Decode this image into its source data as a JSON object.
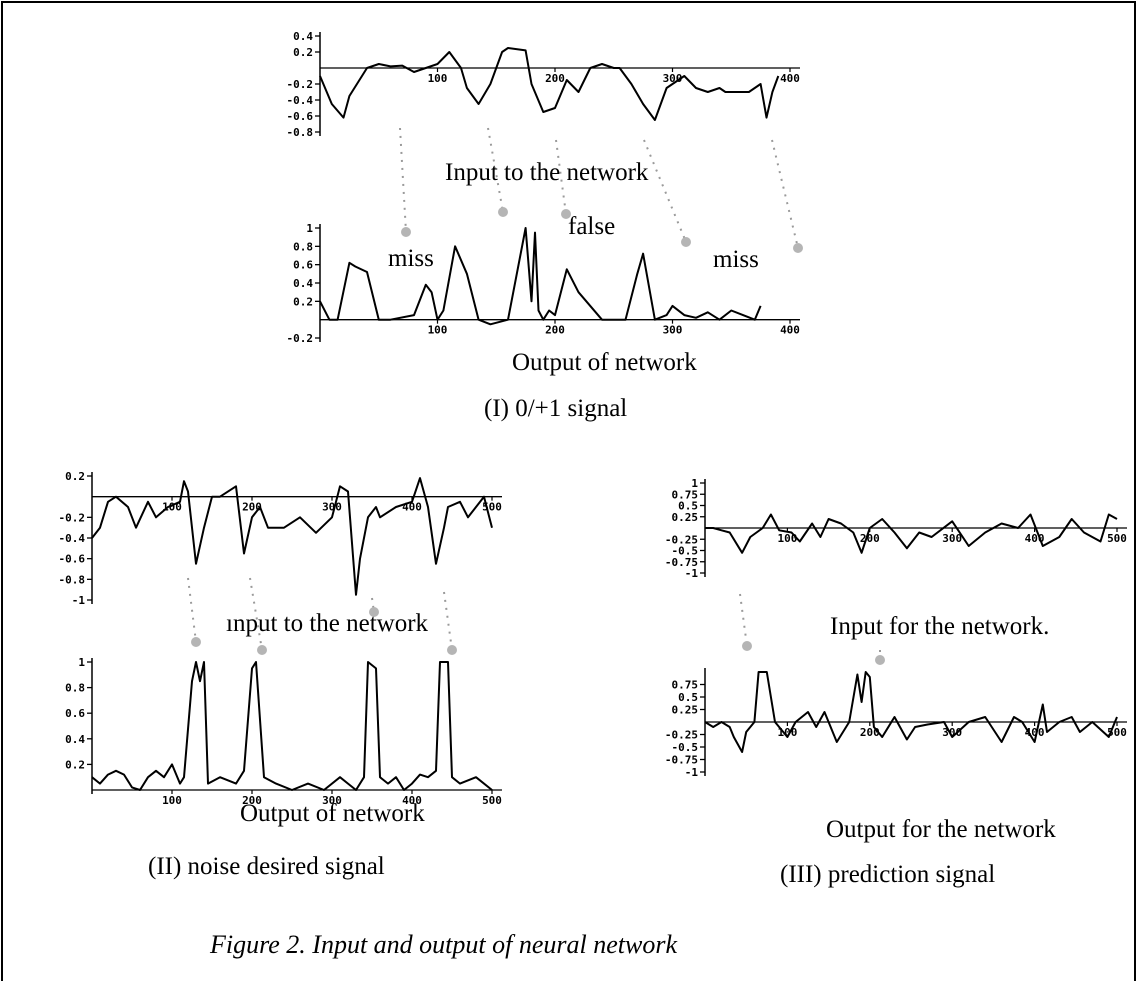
{
  "caption": "Figure 2.   Input and output of neural network",
  "labels": {
    "p1_input": "Input to the network",
    "p1_output": "Output of network",
    "p1_title": "(I) 0/+1 signal",
    "p1_false": "false",
    "p1_miss1": "miss",
    "p1_miss2": "miss",
    "p2_input": "ınput to the network",
    "p2_output": "Output of network",
    "p2_title": "(II) noise desired signal",
    "p3_input": "Input for the network.",
    "p3_output": "Output for the network",
    "p3_title": "(III) prediction signal"
  },
  "chart_data": [
    {
      "id": "p1_in",
      "type": "line",
      "xlim": [
        0,
        400
      ],
      "ylim": [
        -0.8,
        0.4
      ],
      "yticks": [
        "0.4",
        "0.2",
        "-0.2",
        "-0.4",
        "-0.6",
        "-0.8"
      ],
      "xticks": [
        "100",
        "200",
        "300",
        "400"
      ],
      "x": [
        0,
        10,
        20,
        25,
        40,
        50,
        60,
        70,
        80,
        90,
        100,
        110,
        120,
        125,
        135,
        145,
        155,
        160,
        175,
        180,
        190,
        200,
        210,
        220,
        230,
        240,
        250,
        255,
        265,
        275,
        285,
        295,
        310,
        320,
        330,
        340,
        345,
        355,
        365,
        375,
        380,
        385,
        390
      ],
      "y": [
        -0.1,
        -0.45,
        -0.62,
        -0.35,
        0.0,
        0.05,
        0.02,
        0.03,
        -0.05,
        0.0,
        0.05,
        0.2,
        0.0,
        -0.25,
        -0.45,
        -0.2,
        0.2,
        0.25,
        0.22,
        -0.2,
        -0.55,
        -0.5,
        -0.15,
        -0.3,
        0.0,
        0.05,
        0.0,
        0.0,
        -0.2,
        -0.45,
        -0.65,
        -0.25,
        -0.1,
        -0.25,
        -0.3,
        -0.25,
        -0.3,
        -0.3,
        -0.3,
        -0.2,
        -0.62,
        -0.3,
        -0.1
      ]
    },
    {
      "id": "p1_out",
      "type": "line",
      "xlim": [
        0,
        400
      ],
      "ylim": [
        -0.2,
        1.0
      ],
      "yticks": [
        "1",
        "0.8",
        "0.6",
        "0.4",
        "0.2",
        "-0.2"
      ],
      "xticks": [
        "100",
        "200",
        "300",
        "400"
      ],
      "x": [
        0,
        8,
        15,
        25,
        30,
        40,
        50,
        60,
        80,
        90,
        95,
        100,
        105,
        115,
        125,
        135,
        145,
        160,
        175,
        180,
        183,
        186,
        190,
        195,
        200,
        210,
        220,
        240,
        260,
        270,
        275,
        285,
        295,
        300,
        310,
        320,
        330,
        340,
        350,
        360,
        370,
        375
      ],
      "y": [
        0.2,
        0.0,
        0.0,
        0.62,
        0.58,
        0.52,
        0.0,
        0.0,
        0.05,
        0.38,
        0.3,
        0.0,
        0.1,
        0.8,
        0.5,
        0.0,
        -0.05,
        0.0,
        1.0,
        0.2,
        0.95,
        0.1,
        0.0,
        0.1,
        0.05,
        0.55,
        0.3,
        0.0,
        0.0,
        0.5,
        0.72,
        0.0,
        0.05,
        0.15,
        0.05,
        0.02,
        0.08,
        0.0,
        0.1,
        0.05,
        0.0,
        0.15
      ]
    },
    {
      "id": "p2_in",
      "type": "line",
      "xlim": [
        0,
        500
      ],
      "ylim": [
        -1.0,
        0.2
      ],
      "yticks": [
        "0.2",
        "-0.2",
        "-0.4",
        "-0.6",
        "-0.8",
        "-1"
      ],
      "xticks": [
        "100",
        "200",
        "300",
        "400",
        "500"
      ],
      "x": [
        0,
        10,
        20,
        30,
        45,
        55,
        70,
        80,
        95,
        110,
        115,
        120,
        130,
        140,
        150,
        160,
        180,
        190,
        200,
        210,
        220,
        240,
        260,
        280,
        300,
        310,
        320,
        330,
        335,
        345,
        355,
        360,
        380,
        400,
        410,
        420,
        430,
        440,
        445,
        460,
        470,
        480,
        490,
        500
      ],
      "y": [
        -0.4,
        -0.3,
        -0.05,
        0.0,
        -0.1,
        -0.3,
        -0.05,
        -0.2,
        -0.1,
        -0.05,
        0.15,
        0.05,
        -0.65,
        -0.3,
        0.0,
        0.0,
        0.1,
        -0.55,
        -0.2,
        -0.1,
        -0.3,
        -0.3,
        -0.2,
        -0.35,
        -0.2,
        0.1,
        0.05,
        -0.95,
        -0.6,
        -0.2,
        -0.1,
        -0.2,
        -0.1,
        -0.05,
        0.18,
        -0.1,
        -0.65,
        -0.3,
        -0.1,
        -0.05,
        -0.2,
        -0.1,
        0.0,
        -0.3
      ]
    },
    {
      "id": "p2_out",
      "type": "line",
      "xlim": [
        0,
        500
      ],
      "ylim": [
        0,
        1.0
      ],
      "yticks": [
        "1",
        "0.8",
        "0.6",
        "0.4",
        "0.2"
      ],
      "xticks": [
        "100",
        "200",
        "300",
        "400",
        "500"
      ],
      "x": [
        0,
        10,
        20,
        30,
        40,
        50,
        60,
        70,
        80,
        90,
        100,
        110,
        115,
        125,
        130,
        135,
        140,
        145,
        160,
        180,
        190,
        200,
        205,
        215,
        230,
        250,
        270,
        290,
        310,
        320,
        330,
        340,
        345,
        355,
        360,
        370,
        380,
        390,
        400,
        410,
        420,
        430,
        435,
        445,
        450,
        460,
        480,
        500
      ],
      "y": [
        0.1,
        0.05,
        0.12,
        0.15,
        0.12,
        0.02,
        0.0,
        0.1,
        0.15,
        0.1,
        0.2,
        0.05,
        0.1,
        0.85,
        1.0,
        0.85,
        1.0,
        0.05,
        0.1,
        0.05,
        0.15,
        0.95,
        1.0,
        0.1,
        0.05,
        0.0,
        0.05,
        0.0,
        0.1,
        0.05,
        0.0,
        0.1,
        1.0,
        0.95,
        0.1,
        0.05,
        0.1,
        0.0,
        0.05,
        0.12,
        0.1,
        0.15,
        1.0,
        1.0,
        0.1,
        0.05,
        0.1,
        0.0
      ]
    },
    {
      "id": "p3_in",
      "type": "line",
      "xlim": [
        0,
        500
      ],
      "ylim": [
        -1.0,
        1.0
      ],
      "yticks": [
        "1",
        "0.75",
        "0.5",
        "0.25",
        "-0.25",
        "-0.5",
        "-0.75",
        "-1"
      ],
      "xticks": [
        "100",
        "200",
        "300",
        "400",
        "500"
      ],
      "x": [
        0,
        10,
        20,
        30,
        45,
        55,
        70,
        80,
        90,
        105,
        115,
        130,
        140,
        150,
        165,
        180,
        190,
        200,
        215,
        230,
        245,
        260,
        275,
        300,
        320,
        340,
        360,
        380,
        395,
        410,
        430,
        445,
        460,
        480,
        490,
        500
      ],
      "y": [
        0.0,
        0.0,
        -0.05,
        -0.1,
        -0.55,
        -0.2,
        0.0,
        0.3,
        -0.05,
        -0.1,
        -0.3,
        0.1,
        -0.2,
        0.2,
        0.1,
        -0.1,
        -0.55,
        0.0,
        0.2,
        -0.1,
        -0.45,
        -0.1,
        -0.2,
        0.15,
        -0.4,
        -0.1,
        0.1,
        0.0,
        0.3,
        -0.4,
        -0.2,
        0.2,
        -0.1,
        -0.3,
        0.3,
        0.2
      ]
    },
    {
      "id": "p3_out",
      "type": "line",
      "xlim": [
        0,
        500
      ],
      "ylim": [
        -1.0,
        1.0
      ],
      "yticks": [
        "0.75",
        "0.5",
        "0.25",
        "-0.25",
        "-0.5",
        "-0.75",
        "-1"
      ],
      "xticks": [
        "100",
        "200",
        "300",
        "400",
        "500"
      ],
      "x": [
        0,
        10,
        20,
        30,
        35,
        45,
        50,
        60,
        65,
        75,
        85,
        100,
        110,
        125,
        135,
        145,
        160,
        175,
        185,
        190,
        195,
        200,
        205,
        215,
        230,
        245,
        255,
        270,
        290,
        300,
        320,
        340,
        360,
        375,
        385,
        400,
        410,
        415,
        430,
        445,
        455,
        470,
        490,
        500
      ],
      "y": [
        0.0,
        -0.1,
        0.0,
        -0.1,
        -0.3,
        -0.6,
        -0.2,
        0.0,
        1.0,
        1.0,
        0.0,
        -0.3,
        0.0,
        0.2,
        -0.1,
        0.2,
        -0.4,
        0.0,
        0.95,
        0.4,
        1.0,
        0.9,
        -0.1,
        -0.3,
        0.1,
        -0.35,
        -0.1,
        -0.05,
        0.0,
        -0.3,
        0.0,
        0.1,
        -0.4,
        0.1,
        0.0,
        -0.4,
        0.35,
        -0.2,
        0.0,
        0.1,
        -0.2,
        0.0,
        -0.3,
        0.1
      ]
    }
  ]
}
